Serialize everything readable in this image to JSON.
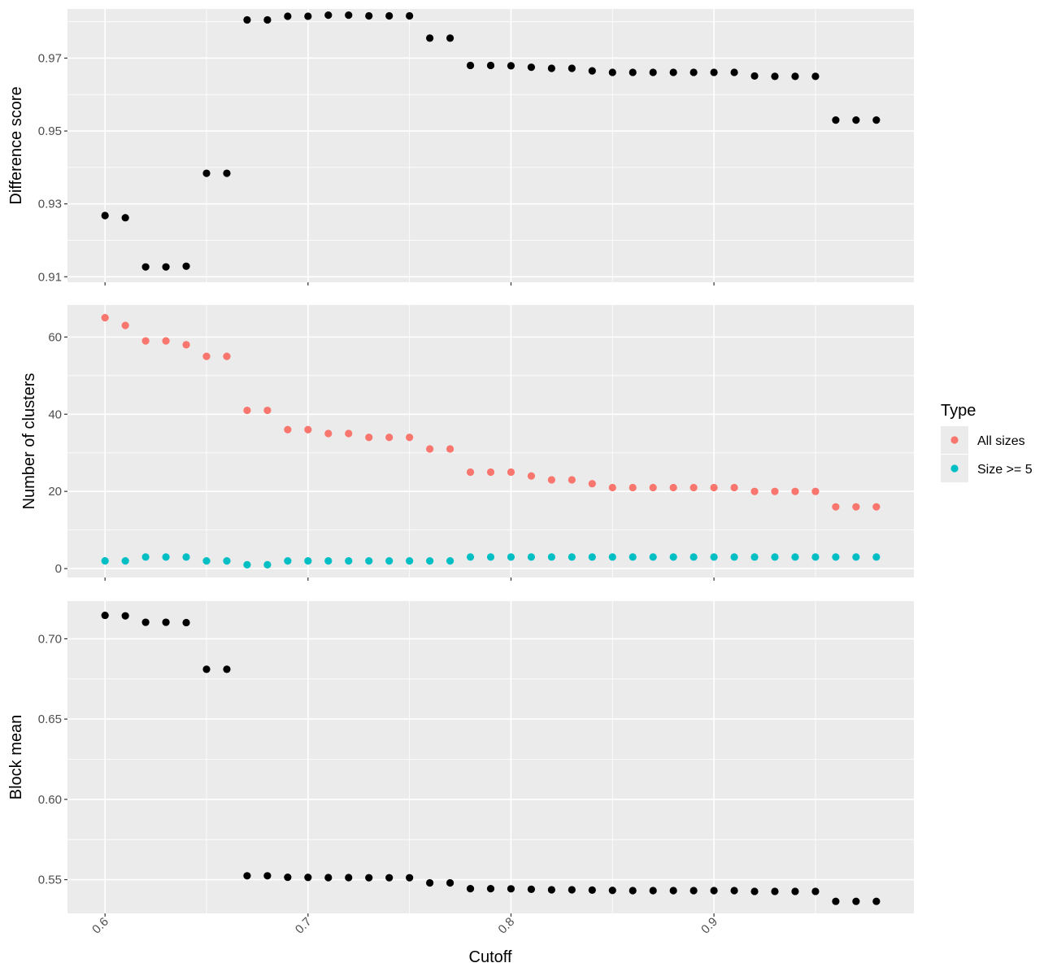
{
  "chart_data": {
    "type": "scatter",
    "xlabel": "Cutoff",
    "x_ticks": [
      "0.6",
      "0.7",
      "0.8",
      "0.9"
    ],
    "x": [
      0.6,
      0.61,
      0.62,
      0.63,
      0.64,
      0.65,
      0.66,
      0.67,
      0.68,
      0.69,
      0.7,
      0.71,
      0.72,
      0.73,
      0.74,
      0.75,
      0.76,
      0.77,
      0.78,
      0.79,
      0.8,
      0.81,
      0.82,
      0.83,
      0.84,
      0.85,
      0.86,
      0.87,
      0.88,
      0.89,
      0.9,
      0.91,
      0.92,
      0.93,
      0.94,
      0.95,
      0.96,
      0.97,
      0.98
    ],
    "xlim": [
      0.5815,
      0.9985
    ],
    "grid": true,
    "legend_position": "right",
    "panels": [
      {
        "ylabel": "Difference score",
        "ylim": [
          0.9085,
          0.9835
        ],
        "y_ticks": [
          "0.91",
          "0.93",
          "0.95",
          "0.97"
        ],
        "series": [
          {
            "color": "#000000",
            "values": [
              0.9268,
              0.9262,
              0.9127,
              0.9127,
              0.9129,
              0.9384,
              0.9384,
              0.9805,
              0.9805,
              0.9815,
              0.9815,
              0.9818,
              0.9818,
              0.9816,
              0.9816,
              0.9816,
              0.9755,
              0.9755,
              0.968,
              0.968,
              0.9679,
              0.9675,
              0.9672,
              0.9672,
              0.9665,
              0.9661,
              0.9661,
              0.9661,
              0.9661,
              0.9661,
              0.9661,
              0.9661,
              0.9651,
              0.965,
              0.965,
              0.965,
              0.953,
              0.953,
              0.953
            ]
          }
        ]
      },
      {
        "ylabel": "Number of clusters",
        "ylim": [
          -2.3,
          68.3
        ],
        "y_ticks": [
          "0",
          "20",
          "40",
          "60"
        ],
        "series": [
          {
            "name": "All sizes",
            "color": "#F8766D",
            "values": [
              65,
              63,
              59,
              59,
              58,
              55,
              55,
              41,
              41,
              36,
              36,
              35,
              35,
              34,
              34,
              34,
              31,
              31,
              25,
              25,
              25,
              24,
              23,
              23,
              22,
              21,
              21,
              21,
              21,
              21,
              21,
              21,
              20,
              20,
              20,
              20,
              16,
              16,
              16
            ]
          },
          {
            "name": "Size >= 5",
            "color": "#00BFC4",
            "values": [
              2,
              2,
              3,
              3,
              3,
              2,
              2,
              1,
              1,
              2,
              2,
              2,
              2,
              2,
              2,
              2,
              2,
              2,
              3,
              3,
              3,
              3,
              3,
              3,
              3,
              3,
              3,
              3,
              3,
              3,
              3,
              3,
              3,
              3,
              3,
              3,
              3,
              3,
              3
            ]
          }
        ]
      },
      {
        "ylabel": "Block mean",
        "ylim": [
          0.529,
          0.7235
        ],
        "y_ticks": [
          "0.55",
          "0.60",
          "0.65",
          "0.70"
        ],
        "series": [
          {
            "color": "#000000",
            "values": [
              0.7146,
              0.7143,
              0.7103,
              0.7103,
              0.7101,
              0.681,
              0.681,
              0.5524,
              0.5524,
              0.5515,
              0.5514,
              0.5513,
              0.5513,
              0.5512,
              0.5512,
              0.5512,
              0.548,
              0.548,
              0.5444,
              0.5444,
              0.5443,
              0.544,
              0.5437,
              0.5437,
              0.5435,
              0.5433,
              0.5432,
              0.5432,
              0.5432,
              0.5432,
              0.5432,
              0.5432,
              0.5427,
              0.5427,
              0.5427,
              0.5427,
              0.5365,
              0.5365,
              0.5365
            ]
          }
        ]
      }
    ],
    "legend": {
      "title": "Type",
      "entries": [
        {
          "label": "All sizes",
          "color": "#F8766D"
        },
        {
          "label": "Size >= 5",
          "color": "#00BFC4"
        }
      ]
    }
  }
}
